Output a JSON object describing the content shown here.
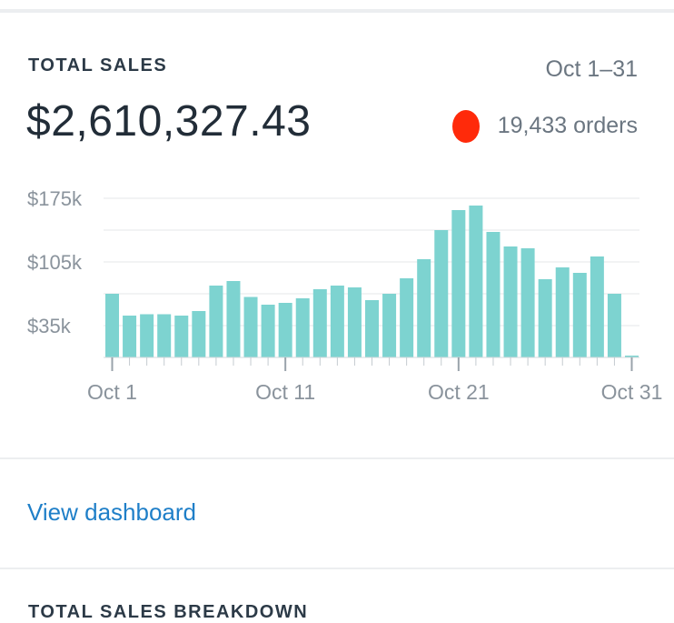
{
  "card": {
    "title": "TOTAL SALES",
    "range": "Oct 1–31",
    "amount": "$2,610,327.43",
    "orders": "19,433 orders"
  },
  "colors": {
    "bar": "#7dd3d0",
    "link": "#1f7fc8",
    "marker": "#ff2a0a"
  },
  "chart_data": {
    "type": "bar",
    "ylim": [
      0,
      200000
    ],
    "yticks": [
      {
        "value": 35000,
        "label": "$35k"
      },
      {
        "value": 105000,
        "label": "$105k"
      },
      {
        "value": 175000,
        "label": "$175k"
      }
    ],
    "categories": [
      "Oct 1",
      "Oct 2",
      "Oct 3",
      "Oct 4",
      "Oct 5",
      "Oct 6",
      "Oct 7",
      "Oct 8",
      "Oct 9",
      "Oct 10",
      "Oct 11",
      "Oct 12",
      "Oct 13",
      "Oct 14",
      "Oct 15",
      "Oct 16",
      "Oct 17",
      "Oct 18",
      "Oct 19",
      "Oct 20",
      "Oct 21",
      "Oct 22",
      "Oct 23",
      "Oct 24",
      "Oct 25",
      "Oct 26",
      "Oct 27",
      "Oct 28",
      "Oct 29",
      "Oct 30",
      "Oct 31"
    ],
    "values": [
      70000,
      46000,
      47500,
      47500,
      46000,
      51000,
      79000,
      84000,
      66500,
      58000,
      60000,
      65000,
      75000,
      79000,
      77000,
      63000,
      70000,
      87000,
      108000,
      140000,
      162000,
      167000,
      138000,
      122000,
      120000,
      86000,
      99000,
      93000,
      111000,
      70000,
      2000
    ],
    "xtick_labels": [
      {
        "index": 0,
        "label": "Oct 1"
      },
      {
        "index": 10,
        "label": "Oct 11"
      },
      {
        "index": 20,
        "label": "Oct 21"
      },
      {
        "index": 30,
        "label": "Oct 31"
      }
    ]
  },
  "link": {
    "label": "View dashboard"
  },
  "next_section": {
    "heading": "TOTAL SALES BREAKDOWN"
  }
}
